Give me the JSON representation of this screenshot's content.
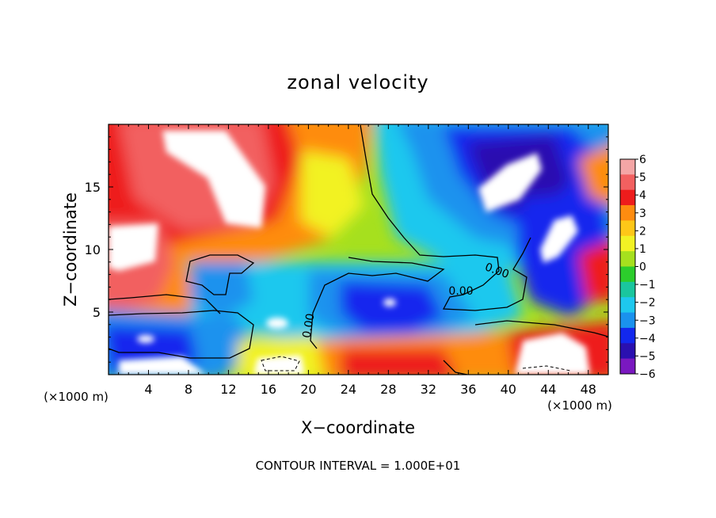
{
  "chart_data": {
    "type": "heatmap",
    "title": "zonal velocity",
    "xlabel": "X−coordinate",
    "ylabel": "Z−coordinate",
    "x_unit_label": "(×1000 m)",
    "z_unit_label": "(×1000 m)",
    "xlim": [
      0,
      50
    ],
    "ylim": [
      0,
      20
    ],
    "x_ticks": [
      4,
      8,
      12,
      16,
      20,
      24,
      28,
      32,
      36,
      40,
      44,
      48
    ],
    "y_ticks": [
      5,
      10,
      15
    ],
    "x_tick_labels": [
      "4",
      "8",
      "12",
      "16",
      "20",
      "24",
      "28",
      "32",
      "36",
      "40",
      "44",
      "48"
    ],
    "y_tick_labels": [
      "5",
      "10",
      "15"
    ],
    "colorbar": {
      "levels": [
        6,
        5,
        4,
        3,
        2,
        1,
        0,
        -1,
        -2,
        -3,
        -4,
        -5,
        -6
      ],
      "labels": [
        "6",
        "5",
        "4",
        "3",
        "2",
        "1",
        "0",
        "−1",
        "−2",
        "−3",
        "−4",
        "−5",
        "−6"
      ],
      "colors": [
        "#f4a6a6",
        "#f26060",
        "#ee1c1c",
        "#fe8c10",
        "#fec718",
        "#f2f224",
        "#a6e01e",
        "#2ccd2c",
        "#1ac69e",
        "#1ec8ee",
        "#1a92ee",
        "#1228ee",
        "#2a10b0",
        "#7a18c0"
      ]
    },
    "contour_labels": [
      "0.00",
      "0.00",
      "0.00"
    ],
    "note": "CONTOUR INTERVAL = 1.000E+01",
    "grid": false,
    "legend_position": "right"
  }
}
